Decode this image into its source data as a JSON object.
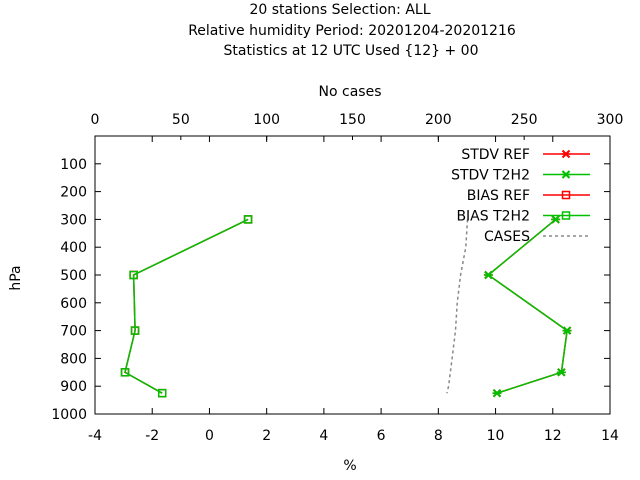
{
  "chart_data": {
    "type": "line",
    "title_lines": [
      "20 stations Selection: ALL",
      "Relative humidity  Period: 20201204-20201216",
      "Statistics at 12 UTC  Used {12} + 00"
    ],
    "xlabel": "%",
    "ylabel": "hPa",
    "x2label": "No cases",
    "xlim": [
      -4,
      14
    ],
    "x2lim": [
      0,
      300
    ],
    "ylim": [
      1000,
      0
    ],
    "xticks": [
      -4,
      -2,
      0,
      2,
      4,
      6,
      8,
      10,
      12,
      14
    ],
    "x2ticks": [
      0,
      50,
      100,
      150,
      200,
      250,
      300
    ],
    "yticks": [
      100,
      200,
      300,
      400,
      500,
      600,
      700,
      800,
      900,
      1000
    ],
    "grid": false,
    "legend_position": "top-right",
    "series": [
      {
        "name": "STDV REF",
        "color": "#ff0000",
        "marker": "x",
        "axis": "x",
        "points": [
          [
            12.1,
            300
          ],
          [
            9.75,
            500
          ],
          [
            12.5,
            700
          ],
          [
            12.3,
            850
          ],
          [
            10.05,
            925
          ]
        ]
      },
      {
        "name": "STDV T2H2",
        "color": "#00c000",
        "marker": "x",
        "axis": "x",
        "points": [
          [
            12.1,
            300
          ],
          [
            9.75,
            500
          ],
          [
            12.5,
            700
          ],
          [
            12.3,
            850
          ],
          [
            10.05,
            925
          ]
        ]
      },
      {
        "name": "BIAS REF",
        "color": "#ff0000",
        "marker": "square",
        "axis": "x",
        "points": [
          [
            1.35,
            300
          ],
          [
            -2.65,
            500
          ],
          [
            -2.6,
            700
          ],
          [
            -2.95,
            850
          ],
          [
            -1.65,
            925
          ]
        ]
      },
      {
        "name": "BIAS T2H2",
        "color": "#00c000",
        "marker": "square",
        "axis": "x",
        "points": [
          [
            1.35,
            300
          ],
          [
            -2.65,
            500
          ],
          [
            -2.6,
            700
          ],
          [
            -2.95,
            850
          ],
          [
            -1.65,
            925
          ]
        ]
      },
      {
        "name": "CASES",
        "color": "#888888",
        "marker": "none",
        "dashed": true,
        "axis": "x2",
        "points": [
          [
            217,
            300
          ],
          [
            216,
            400
          ],
          [
            213,
            500
          ],
          [
            211,
            600
          ],
          [
            210,
            700
          ],
          [
            208,
            800
          ],
          [
            206,
            900
          ],
          [
            205,
            925
          ]
        ]
      }
    ]
  }
}
